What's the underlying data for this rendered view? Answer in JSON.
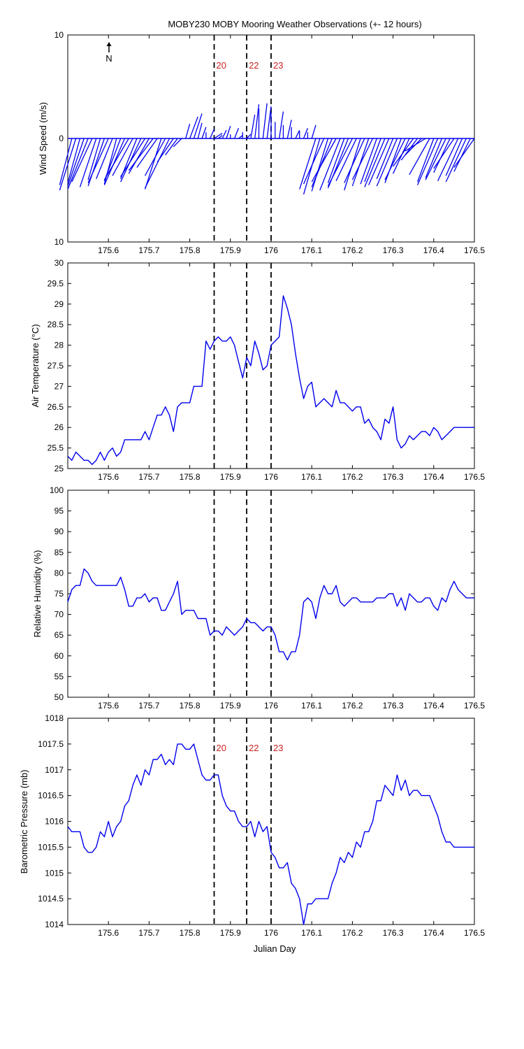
{
  "figure": {
    "title": "MOBY230 MOBY Mooring Weather Observations (+- 12 hours)",
    "x_label": "Julian Day",
    "marker_color": "#cc2222",
    "line_color": "#0000ee",
    "north_label": "N"
  },
  "chart_data": [
    {
      "type": "line",
      "id": "wind",
      "subtype": "wind-stick",
      "ylabel": "Wind Speed (m/s)",
      "xlim": [
        175.5,
        176.5
      ],
      "ylim": [
        -10,
        10
      ],
      "y_tick_labels": [
        "10",
        "0",
        "10"
      ],
      "x_tick_labels": [
        "175.6",
        "175.7",
        "175.8",
        "175.9",
        "176",
        "176.1",
        "176.2",
        "176.3",
        "176.4",
        "176.5"
      ],
      "markers": [
        {
          "x": 175.86,
          "label": "20"
        },
        {
          "x": 175.94,
          "label": "22"
        },
        {
          "x": 176.0,
          "label": "23"
        }
      ],
      "x": [
        175.51,
        175.52,
        175.53,
        175.54,
        175.55,
        175.56,
        175.57,
        175.58,
        175.59,
        175.6,
        175.61,
        175.62,
        175.63,
        175.64,
        175.65,
        175.66,
        175.67,
        175.68,
        175.69,
        175.7,
        175.71,
        175.72,
        175.73,
        175.74,
        175.75,
        175.76,
        175.77,
        175.78,
        175.79,
        175.8,
        175.81,
        175.82,
        175.83,
        175.84,
        175.85,
        175.86,
        175.87,
        175.88,
        175.89,
        175.9,
        175.91,
        175.92,
        175.93,
        175.94,
        175.95,
        175.96,
        175.97,
        175.98,
        175.99,
        176.0,
        176.01,
        176.02,
        176.03,
        176.04,
        176.05,
        176.06,
        176.07,
        176.08,
        176.09,
        176.1,
        176.11,
        176.12,
        176.13,
        176.14,
        176.15,
        176.16,
        176.17,
        176.18,
        176.19,
        176.2,
        176.21,
        176.22,
        176.23,
        176.24,
        176.25,
        176.26,
        176.27,
        176.28,
        176.29,
        176.3,
        176.31,
        176.32,
        176.33,
        176.34,
        176.35,
        176.36,
        176.37,
        176.38,
        176.39,
        176.4,
        176.41,
        176.42,
        176.43,
        176.44,
        176.45,
        176.46,
        176.47,
        176.48,
        176.49,
        176.5
      ],
      "u": [
        -0.03,
        -0.04,
        -0.03,
        -0.04,
        -0.05,
        -0.05,
        -0.04,
        -0.03,
        -0.04,
        -0.05,
        -0.04,
        -0.03,
        -0.04,
        -0.05,
        -0.06,
        -0.05,
        -0.04,
        -0.05,
        -0.06,
        -0.05,
        -0.06,
        -0.05,
        -0.04,
        -0.05,
        -0.06,
        -0.04,
        -0.03,
        -0.02,
        0.01,
        0.02,
        0.02,
        0.01,
        0.01,
        0.0,
        0.01,
        0.02,
        0.01,
        0.01,
        0.01,
        0.0,
        0.01,
        0.01,
        0.0,
        0.01,
        0.01,
        0.01,
        0.0,
        0.01,
        0.01,
        0.0,
        0.0,
        0.01,
        0.0,
        0.01,
        0.0,
        0.01,
        0.0,
        0.01,
        0.0,
        0.01,
        -0.04,
        -0.04,
        -0.05,
        -0.04,
        -0.05,
        -0.06,
        -0.05,
        -0.04,
        -0.05,
        -0.06,
        -0.05,
        -0.04,
        -0.05,
        -0.04,
        -0.05,
        -0.04,
        -0.04,
        -0.05,
        -0.05,
        -0.04,
        -0.05,
        -0.04,
        -0.05,
        -0.04,
        -0.05,
        -0.04,
        -0.04,
        -0.05,
        -0.05,
        -0.04,
        -0.05,
        -0.04,
        -0.05,
        -0.04,
        -0.05,
        -0.05,
        -0.04,
        -0.05,
        -0.04,
        -0.05
      ],
      "v": [
        -4.5,
        -5.0,
        -4.3,
        -4.6,
        -4.9,
        -4.2,
        -4.7,
        -4.0,
        -4.6,
        -4.3,
        -3.9,
        -4.4,
        -4.1,
        -4.5,
        -4.0,
        -3.6,
        -3.9,
        -4.2,
        -3.7,
        -3.4,
        -3.1,
        -2.8,
        -4.9,
        -3.6,
        -4.8,
        -2.3,
        -1.6,
        -0.8,
        1.4,
        2.1,
        2.4,
        1.5,
        1.1,
        0.6,
        0.9,
        0.5,
        0.3,
        0.8,
        1.2,
        0.4,
        1.0,
        0.3,
        0.6,
        0.4,
        2.3,
        3.3,
        2.9,
        3.4,
        3.1,
        2.5,
        1.6,
        2.6,
        1.3,
        1.8,
        1.1,
        0.8,
        0.7,
        1.0,
        0.6,
        1.3,
        -4.9,
        -5.4,
        -4.4,
        -5.1,
        -4.7,
        -4.2,
        -5.0,
        -4.3,
        -4.8,
        -4.6,
        -4.1,
        -5.0,
        -4.3,
        -4.6,
        -4.0,
        -4.4,
        -4.2,
        -4.7,
        -4.5,
        -3.9,
        -4.6,
        -4.3,
        -4.0,
        -3.4,
        -2.7,
        -2.1,
        -1.6,
        -1.2,
        -3.5,
        -4.2,
        -4.5,
        -3.8,
        -4.0,
        -3.3,
        -2.9,
        -4.1,
        -3.6,
        -4.2,
        -3.2,
        -2.8
      ]
    },
    {
      "type": "line",
      "id": "air",
      "ylabel": "Air Temperature (°C)",
      "xlim": [
        175.5,
        176.5
      ],
      "ylim": [
        25,
        30
      ],
      "y_tick_labels": [
        "25",
        "25.5",
        "26",
        "26.5",
        "27",
        "27.5",
        "28",
        "28.5",
        "29",
        "29.5",
        "30"
      ],
      "x_tick_labels": [
        "175.6",
        "175.7",
        "175.8",
        "175.9",
        "176",
        "176.1",
        "176.2",
        "176.3",
        "176.4",
        "176.5"
      ],
      "markers": [
        {
          "x": 175.86
        },
        {
          "x": 175.94
        },
        {
          "x": 176.0
        }
      ],
      "x": [
        175.5,
        175.51,
        175.52,
        175.53,
        175.54,
        175.55,
        175.56,
        175.57,
        175.58,
        175.59,
        175.6,
        175.61,
        175.62,
        175.63,
        175.64,
        175.65,
        175.66,
        175.67,
        175.68,
        175.69,
        175.7,
        175.71,
        175.72,
        175.73,
        175.74,
        175.75,
        175.76,
        175.77,
        175.78,
        175.79,
        175.8,
        175.81,
        175.82,
        175.83,
        175.84,
        175.85,
        175.86,
        175.87,
        175.88,
        175.89,
        175.9,
        175.91,
        175.92,
        175.93,
        175.94,
        175.95,
        175.96,
        175.97,
        175.98,
        175.99,
        176.0,
        176.01,
        176.02,
        176.03,
        176.04,
        176.05,
        176.06,
        176.07,
        176.08,
        176.09,
        176.1,
        176.11,
        176.12,
        176.13,
        176.14,
        176.15,
        176.16,
        176.17,
        176.18,
        176.19,
        176.2,
        176.21,
        176.22,
        176.23,
        176.24,
        176.25,
        176.26,
        176.27,
        176.28,
        176.29,
        176.3,
        176.31,
        176.32,
        176.33,
        176.34,
        176.35,
        176.36,
        176.37,
        176.38,
        176.39,
        176.4,
        176.41,
        176.42,
        176.43,
        176.44,
        176.45,
        176.46,
        176.47,
        176.48,
        176.49,
        176.5
      ],
      "values": [
        25.3,
        25.2,
        25.4,
        25.3,
        25.2,
        25.2,
        25.1,
        25.2,
        25.4,
        25.2,
        25.4,
        25.5,
        25.3,
        25.4,
        25.7,
        25.7,
        25.7,
        25.7,
        25.7,
        25.9,
        25.7,
        26.0,
        26.3,
        26.3,
        26.5,
        26.3,
        25.9,
        26.5,
        26.6,
        26.6,
        26.6,
        27.0,
        27.0,
        27.0,
        28.1,
        27.9,
        28.1,
        28.2,
        28.1,
        28.1,
        28.2,
        28.0,
        27.6,
        27.2,
        27.7,
        27.5,
        28.1,
        27.8,
        27.4,
        27.5,
        28.0,
        28.1,
        28.2,
        29.2,
        28.9,
        28.5,
        27.8,
        27.2,
        26.7,
        27.0,
        27.1,
        26.5,
        26.6,
        26.7,
        26.6,
        26.5,
        26.9,
        26.6,
        26.6,
        26.5,
        26.4,
        26.5,
        26.5,
        26.1,
        26.2,
        26.0,
        25.9,
        25.7,
        26.2,
        26.1,
        26.5,
        25.7,
        25.5,
        25.6,
        25.8,
        25.7,
        25.8,
        25.9,
        25.9,
        25.8,
        26.0,
        25.9,
        25.7,
        25.8,
        25.9,
        26.0,
        26.0,
        26.0,
        26.0,
        26.0,
        26.0
      ]
    },
    {
      "type": "line",
      "id": "rh",
      "ylabel": "Relative Humidity (%)",
      "xlim": [
        175.5,
        176.5
      ],
      "ylim": [
        50,
        100
      ],
      "y_tick_labels": [
        "50",
        "55",
        "60",
        "65",
        "70",
        "75",
        "80",
        "85",
        "90",
        "95",
        "100"
      ],
      "x_tick_labels": [
        "175.6",
        "175.7",
        "175.8",
        "175.9",
        "176",
        "176.1",
        "176.2",
        "176.3",
        "176.4",
        "176.5"
      ],
      "markers": [
        {
          "x": 175.86
        },
        {
          "x": 175.94
        },
        {
          "x": 176.0
        }
      ],
      "x": [
        175.5,
        175.51,
        175.52,
        175.53,
        175.54,
        175.55,
        175.56,
        175.57,
        175.58,
        175.59,
        175.6,
        175.61,
        175.62,
        175.63,
        175.64,
        175.65,
        175.66,
        175.67,
        175.68,
        175.69,
        175.7,
        175.71,
        175.72,
        175.73,
        175.74,
        175.75,
        175.76,
        175.77,
        175.78,
        175.79,
        175.8,
        175.81,
        175.82,
        175.83,
        175.84,
        175.85,
        175.86,
        175.87,
        175.88,
        175.89,
        175.9,
        175.91,
        175.92,
        175.93,
        175.94,
        175.95,
        175.96,
        175.97,
        175.98,
        175.99,
        176.0,
        176.01,
        176.02,
        176.03,
        176.04,
        176.05,
        176.06,
        176.07,
        176.08,
        176.09,
        176.1,
        176.11,
        176.12,
        176.13,
        176.14,
        176.15,
        176.16,
        176.17,
        176.18,
        176.19,
        176.2,
        176.21,
        176.22,
        176.23,
        176.24,
        176.25,
        176.26,
        176.27,
        176.28,
        176.29,
        176.3,
        176.31,
        176.32,
        176.33,
        176.34,
        176.35,
        176.36,
        176.37,
        176.38,
        176.39,
        176.4,
        176.41,
        176.42,
        176.43,
        176.44,
        176.45,
        176.46,
        176.47,
        176.48,
        176.49,
        176.5
      ],
      "values": [
        73,
        76,
        77,
        77,
        81,
        80,
        78,
        77,
        77,
        77,
        77,
        77,
        77,
        79,
        76,
        72,
        72,
        74,
        74,
        75,
        73,
        74,
        74,
        71,
        71,
        73,
        75,
        78,
        70,
        71,
        71,
        71,
        69,
        69,
        69,
        65,
        66,
        66,
        65,
        67,
        66,
        65,
        66,
        67,
        69,
        68,
        68,
        67,
        66,
        67,
        67,
        65,
        61,
        61,
        59,
        61,
        61,
        65,
        73,
        74,
        73,
        69,
        74,
        77,
        75,
        75,
        77,
        73,
        72,
        73,
        74,
        74,
        73,
        73,
        73,
        73,
        74,
        74,
        74,
        75,
        75,
        72,
        74,
        71,
        75,
        74,
        73,
        73,
        74,
        74,
        72,
        71,
        74,
        73,
        76,
        78,
        76,
        75,
        74,
        74,
        74
      ],
      "_note": ""
    },
    {
      "type": "line",
      "id": "bp",
      "ylabel": "Barometric Pressure (mb)",
      "xlabel": "Julian Day",
      "xlim": [
        175.5,
        176.5
      ],
      "ylim": [
        1014,
        1018
      ],
      "y_tick_labels": [
        "1014",
        "1014.5",
        "1015",
        "1015.5",
        "1016",
        "1016.5",
        "1017",
        "1017.5",
        "1018"
      ],
      "x_tick_labels": [
        "175.6",
        "175.7",
        "175.8",
        "175.9",
        "176",
        "176.1",
        "176.2",
        "176.3",
        "176.4",
        "176.5"
      ],
      "markers": [
        {
          "x": 175.86,
          "label": "20"
        },
        {
          "x": 175.94,
          "label": "22"
        },
        {
          "x": 176.0,
          "label": "23"
        }
      ],
      "x": [
        175.5,
        175.51,
        175.52,
        175.53,
        175.54,
        175.55,
        175.56,
        175.57,
        175.58,
        175.59,
        175.6,
        175.61,
        175.62,
        175.63,
        175.64,
        175.65,
        175.66,
        175.67,
        175.68,
        175.69,
        175.7,
        175.71,
        175.72,
        175.73,
        175.74,
        175.75,
        175.76,
        175.77,
        175.78,
        175.79,
        175.8,
        175.81,
        175.82,
        175.83,
        175.84,
        175.85,
        175.86,
        175.87,
        175.88,
        175.89,
        175.9,
        175.91,
        175.92,
        175.93,
        175.94,
        175.95,
        175.96,
        175.97,
        175.98,
        175.99,
        176.0,
        176.01,
        176.02,
        176.03,
        176.04,
        176.05,
        176.06,
        176.07,
        176.08,
        176.09,
        176.1,
        176.11,
        176.12,
        176.13,
        176.14,
        176.15,
        176.16,
        176.17,
        176.18,
        176.19,
        176.2,
        176.21,
        176.22,
        176.23,
        176.24,
        176.25,
        176.26,
        176.27,
        176.28,
        176.29,
        176.3,
        176.31,
        176.32,
        176.33,
        176.34,
        176.35,
        176.36,
        176.37,
        176.38,
        176.39,
        176.4,
        176.41,
        176.42,
        176.43,
        176.44,
        176.45,
        176.46,
        176.47,
        176.48,
        176.49,
        176.5
      ],
      "values": [
        1015.9,
        1015.8,
        1015.8,
        1015.8,
        1015.5,
        1015.4,
        1015.4,
        1015.5,
        1015.8,
        1015.7,
        1016.0,
        1015.7,
        1015.9,
        1016.0,
        1016.3,
        1016.4,
        1016.7,
        1016.9,
        1016.7,
        1017.0,
        1016.9,
        1017.2,
        1017.2,
        1017.3,
        1017.1,
        1017.2,
        1017.1,
        1017.5,
        1017.5,
        1017.4,
        1017.4,
        1017.5,
        1017.2,
        1016.9,
        1016.8,
        1016.8,
        1016.9,
        1016.9,
        1016.5,
        1016.3,
        1016.2,
        1016.2,
        1016.0,
        1015.9,
        1015.9,
        1016.0,
        1015.7,
        1016.0,
        1015.8,
        1015.9,
        1015.4,
        1015.3,
        1015.1,
        1015.1,
        1015.2,
        1014.8,
        1014.7,
        1014.5,
        1014.0,
        1014.4,
        1014.4,
        1014.5,
        1014.5,
        1014.5,
        1014.5,
        1014.8,
        1015.0,
        1015.3,
        1015.2,
        1015.4,
        1015.3,
        1015.6,
        1015.5,
        1015.8,
        1015.8,
        1016.0,
        1016.4,
        1016.4,
        1016.7,
        1016.6,
        1016.5,
        1016.9,
        1016.6,
        1016.8,
        1016.5,
        1016.6,
        1016.6,
        1016.5,
        1016.5,
        1016.5,
        1016.3,
        1016.1,
        1015.8,
        1015.6,
        1015.6,
        1015.5,
        1015.5,
        1015.5,
        1015.5,
        1015.5,
        1015.5
      ]
    }
  ]
}
